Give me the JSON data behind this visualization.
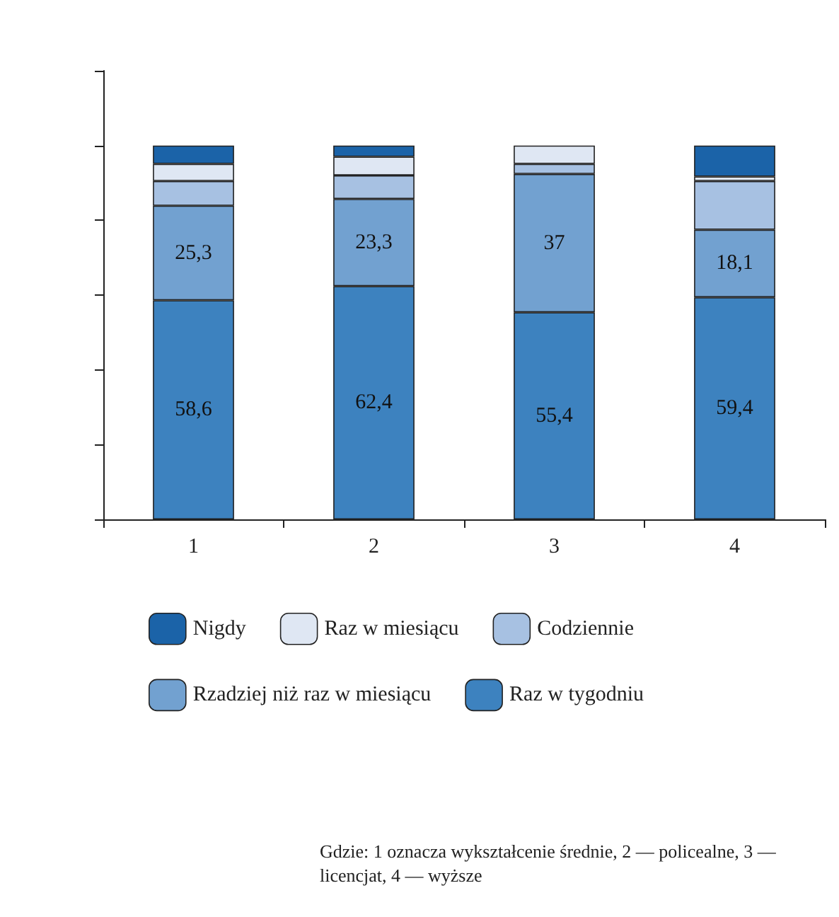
{
  "chart_data": {
    "type": "bar",
    "stacked": true,
    "categories": [
      "1",
      "2",
      "3",
      "4"
    ],
    "series": [
      {
        "name": "Raz w tygodniu",
        "color": "#3d82bf",
        "values": [
          58.6,
          62.4,
          55.4,
          59.4
        ],
        "value_labels": [
          "58,6",
          "62,4",
          "55,4",
          "59,4"
        ]
      },
      {
        "name": "Rzadziej niż raz w miesiącu",
        "color": "#72a1d0",
        "values": [
          25.3,
          23.3,
          37,
          18.1
        ],
        "value_labels": [
          "25,3",
          "23,3",
          "37",
          "18,1"
        ]
      },
      {
        "name": "Codziennie",
        "color": "#a7c1e2",
        "values": [
          6.6,
          6.3,
          2.7,
          13
        ]
      },
      {
        "name": "Raz w miesiącu",
        "color": "#dfe7f3",
        "values": [
          4.6,
          5,
          4.9,
          1.2
        ]
      },
      {
        "name": "Nigdy",
        "color": "#1b63a8",
        "values": [
          4.9,
          3,
          0,
          8.3
        ]
      }
    ],
    "ylim": [
      0,
      120
    ],
    "yticks": [
      {
        "value": 0,
        "label": null
      },
      {
        "value": 20,
        "label": null
      },
      {
        "value": 40,
        "label": null
      },
      {
        "value": 60,
        "label": null
      },
      {
        "value": 80,
        "label": null
      },
      {
        "value": 100,
        "label": null
      },
      {
        "value": 120,
        "label": null
      }
    ],
    "grid": false,
    "legend": "bottom",
    "annotations": [
      "Gdzie: 1 oznacza wykształcenie średnie, 2 — policealne, 3 — licencjat, 4 — wyższe"
    ]
  }
}
